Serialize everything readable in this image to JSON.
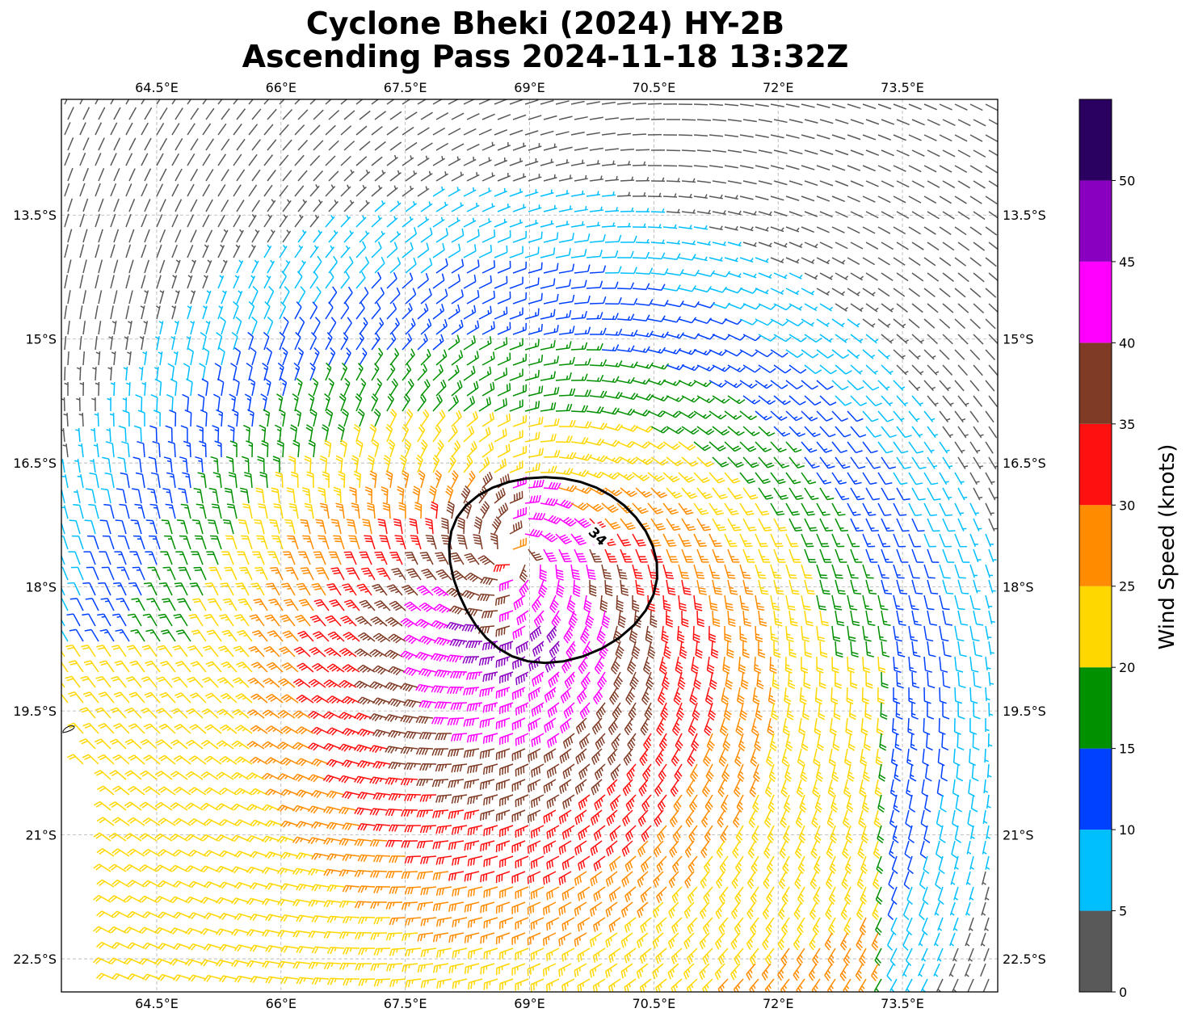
{
  "title_line1": "Cyclone Bheki (2024) HY-2B",
  "title_line2": "Ascending Pass 2024-11-18 13:32Z",
  "lon_ticks": [
    "64.5°E",
    "66°E",
    "67.5°E",
    "69°E",
    "70.5°E",
    "72°E",
    "73.5°E"
  ],
  "lon_values": [
    64.5,
    66,
    67.5,
    69,
    70.5,
    72,
    73.5
  ],
  "lat_ticks": [
    "13.5°S",
    "15°S",
    "16.5°S",
    "18°S",
    "19.5°S",
    "21°S",
    "22.5°S"
  ],
  "lat_values": [
    -13.5,
    -15,
    -16.5,
    -18,
    -19.5,
    -21,
    -22.5
  ],
  "map_extent": {
    "lon_min": 63.35,
    "lon_max": 74.65,
    "lat_min": -22.9,
    "lat_max": -12.1
  },
  "storm_center": {
    "lon": 68.8,
    "lat": -17.6
  },
  "contour_label": "34",
  "colorbar": {
    "label": "Wind Speed (knots)",
    "tick_labels": [
      "0",
      "5",
      "10",
      "15",
      "20",
      "25",
      "30",
      "35",
      "40",
      "45",
      "50"
    ],
    "bins": [
      0,
      5,
      10,
      15,
      20,
      25,
      30,
      35,
      40,
      45,
      50,
      55
    ],
    "colors": [
      "#595959",
      "#00bfff",
      "#0040ff",
      "#009000",
      "#ffd700",
      "#ff8c00",
      "#ff1010",
      "#7f3b25",
      "#ff00ff",
      "#8a00c0",
      "#2a0060"
    ]
  }
}
